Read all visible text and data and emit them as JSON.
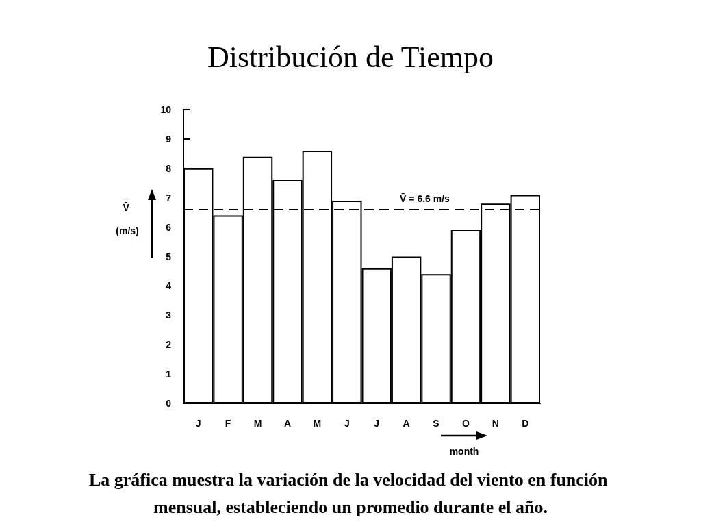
{
  "chart_data": {
    "type": "bar",
    "title": "Distribución de Tiempo",
    "xlabel": "month",
    "ylabel": "V̄ (m/s)",
    "categories": [
      "J",
      "F",
      "M",
      "A",
      "M",
      "J",
      "J",
      "A",
      "S",
      "O",
      "N",
      "D"
    ],
    "values": [
      8.0,
      6.4,
      8.4,
      7.6,
      8.6,
      6.9,
      4.6,
      5.0,
      4.4,
      5.9,
      6.8,
      7.1
    ],
    "color": "#ffffff",
    "ylim": [
      0,
      10
    ],
    "yticks": [
      0,
      1,
      2,
      3,
      4,
      5,
      6,
      7,
      8,
      9,
      10
    ],
    "grid": false,
    "ref_lines": [
      {
        "axis": "y",
        "value": 6.6,
        "label": "V̄ = 6.6 m/s",
        "line_style": "dashed",
        "color": "#000000"
      }
    ],
    "annotations": [
      "La gráfica muestra la variación de la velocidad del viento en función mensual, estableciendo un promedio durante el año."
    ]
  }
}
